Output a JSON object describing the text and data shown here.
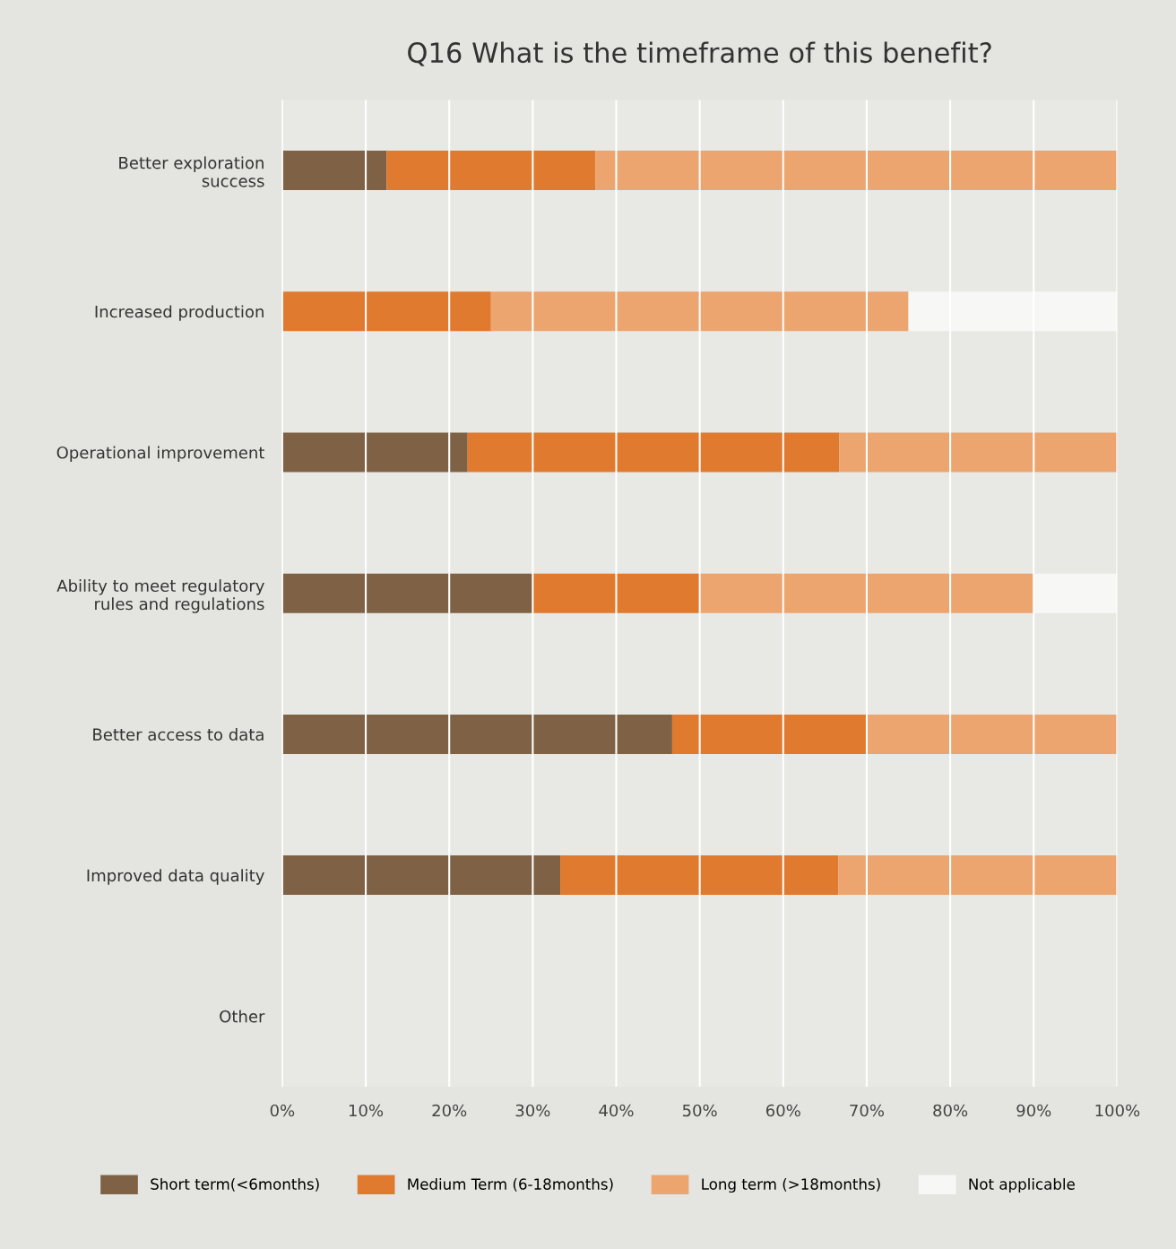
{
  "chart_data": {
    "type": "bar",
    "orientation": "horizontal",
    "stacked": true,
    "title": "Q16 What is the timeframe of this benefit?",
    "categories": [
      "Better exploration\nsuccess",
      "Increased production",
      "Operational improvement",
      "Ability to meet regulatory\nrules and regulations",
      "Better access to data",
      "Improved data quality",
      "Other"
    ],
    "series": [
      {
        "name": "Short term(<6months)",
        "color": "#7f6245",
        "values": [
          12.5,
          0,
          22.2,
          30,
          46.7,
          33.3,
          null
        ]
      },
      {
        "name": "Medium Term (6-18months)",
        "color": "#e07a2e",
        "values": [
          25,
          25,
          44.5,
          20,
          23.3,
          33.3,
          null
        ]
      },
      {
        "name": "Long term (>18months)",
        "color": "#eca56f",
        "values": [
          62.5,
          50,
          33.3,
          40,
          30,
          33.4,
          null
        ]
      },
      {
        "name": "Not applicable",
        "color": "#f7f7f5",
        "values": [
          0,
          25,
          0,
          10,
          0,
          0,
          null
        ]
      }
    ],
    "xlim": [
      0,
      100
    ],
    "xticks": [
      {
        "value": 0,
        "label": "0%"
      },
      {
        "value": 10,
        "label": "10%"
      },
      {
        "value": 20,
        "label": "20%"
      },
      {
        "value": 30,
        "label": "30%"
      },
      {
        "value": 40,
        "label": "40%"
      },
      {
        "value": 50,
        "label": "50%"
      },
      {
        "value": 60,
        "label": "60%"
      },
      {
        "value": 70,
        "label": "70%"
      },
      {
        "value": 80,
        "label": "80%"
      },
      {
        "value": 90,
        "label": "90%"
      },
      {
        "value": 100,
        "label": "100%"
      }
    ],
    "grid": "x",
    "legend": "bottom"
  }
}
